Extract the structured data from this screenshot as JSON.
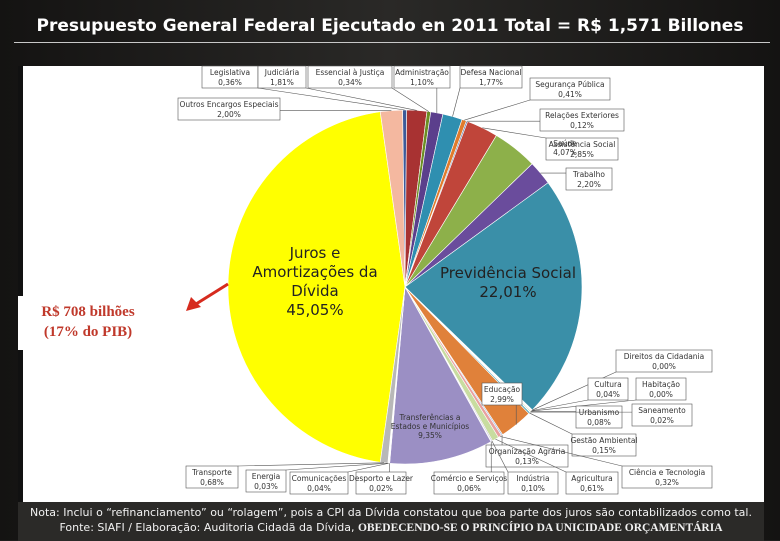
{
  "title": "Presupuesto General Federal Ejecutado en 2011  Total = R$ 1,571 Billones",
  "callout": {
    "line1": "R$ 708 bilhões",
    "line2": "(17%  do PIB)"
  },
  "note": {
    "line1": "Nota: Inclui o “refinanciamento” ou “rolagem”, pois a CPI da Dívida constatou que boa parte dos juros são contabilizados como tal.",
    "line2_prefix": "Fonte: SIAFI  /  Elaboração: Auditoria Cidadã da Dívida, ",
    "line2_bold": "OBEDECENDO-SE O PRINCÍPIO DA UNICIDADE ORÇAMENTÁRIA"
  },
  "chart_data": {
    "type": "pie",
    "title": "Presupuesto General Federal Ejecutado en 2011  Total = R$ 1,571 Billones",
    "unit": "%",
    "slices": [
      {
        "name": "Juros e Amortizações da Dívida",
        "label_lines": [
          "Juros e",
          "Amortizações da",
          "Dívida"
        ],
        "value_label": "45,05%",
        "value": 45.05,
        "color": "#ffff00"
      },
      {
        "name": "Outros Encargos Especiais",
        "value_label": "2,00%",
        "value": 2.0,
        "color": "#f4b8a0"
      },
      {
        "name": "Legislativa",
        "value_label": "0,36%",
        "value": 0.36,
        "color": "#3d5a99"
      },
      {
        "name": "Judiciária",
        "value_label": "1,81%",
        "value": 1.81,
        "color": "#a83232"
      },
      {
        "name": "Essencial à Justiça",
        "value_label": "0,34%",
        "value": 0.34,
        "color": "#6b8e23"
      },
      {
        "name": "Administração",
        "value_label": "1,10%",
        "value": 1.1,
        "color": "#5b3f8c"
      },
      {
        "name": "Defesa Nacional",
        "value_label": "1,77%",
        "value": 1.77,
        "color": "#2f8fb0"
      },
      {
        "name": "Segurança Pública",
        "value_label": "0,41%",
        "value": 0.41,
        "color": "#e07b2c"
      },
      {
        "name": "Relações Exteriores",
        "value_label": "0,12%",
        "value": 0.12,
        "color": "#4f6fa8"
      },
      {
        "name": "Assistência Social",
        "value_label": "2,85%",
        "value": 2.85,
        "color": "#c0453a"
      },
      {
        "name": "Saúde",
        "value_label": "4,07%",
        "value": 4.07,
        "color": "#8db04a"
      },
      {
        "name": "Trabalho",
        "value_label": "2,20%",
        "value": 2.2,
        "color": "#6a4c9c"
      },
      {
        "name": "Previdência Social",
        "value_label": "22,01%",
        "value": 22.01,
        "color": "#3a8fa8"
      },
      {
        "name": "Direitos da Cidadania",
        "value_label": "0,00%",
        "value": 0.0,
        "color": "#e9853a"
      },
      {
        "name": "Cultura",
        "value_label": "0,04%",
        "value": 0.04,
        "color": "#4a6fb0"
      },
      {
        "name": "Habitação",
        "value_label": "0,00%",
        "value": 0.0,
        "color": "#b04040"
      },
      {
        "name": "Urbanismo",
        "value_label": "0,08%",
        "value": 0.08,
        "color": "#90b050"
      },
      {
        "name": "Saneamento",
        "value_label": "0,02%",
        "value": 0.02,
        "color": "#7a5aa8"
      },
      {
        "name": "Gestão Ambiental",
        "value_label": "0,15%",
        "value": 0.15,
        "color": "#48a0b8"
      },
      {
        "name": "Educação",
        "value_label": "2,99%",
        "value": 2.99,
        "color": "#e0813a"
      },
      {
        "name": "Organização Agrária",
        "value_label": "0,13%",
        "value": 0.13,
        "color": "#a8bfe0"
      },
      {
        "name": "Ciência e Tecnologia",
        "value_label": "0,32%",
        "value": 0.32,
        "color": "#e8a0a0"
      },
      {
        "name": "Agricultura",
        "value_label": "0,61%",
        "value": 0.61,
        "color": "#c8dca0"
      },
      {
        "name": "Indústria",
        "value_label": "0,10%",
        "value": 0.1,
        "color": "#b8a8d0"
      },
      {
        "name": "Comércio e Serviços",
        "value_label": "0,06%",
        "value": 0.06,
        "color": "#a0d0e0"
      },
      {
        "name": "Transferências a Estados e Municípios",
        "label_lines": [
          "Transferências a",
          "Estados e Municípios"
        ],
        "value_label": "9,35%",
        "value": 9.35,
        "color": "#9b8fc4"
      },
      {
        "name": "Desporto e Lazer",
        "value_label": "0,02%",
        "value": 0.02,
        "color": "#f0c090"
      },
      {
        "name": "Comunicações",
        "value_label": "0,04%",
        "value": 0.04,
        "color": "#8ab0d8"
      },
      {
        "name": "Energia",
        "value_label": "0,03%",
        "value": 0.03,
        "color": "#e0a0a0"
      },
      {
        "name": "Transporte",
        "value_label": "0,68%",
        "value": 0.68,
        "color": "#b8b8b8"
      }
    ]
  }
}
